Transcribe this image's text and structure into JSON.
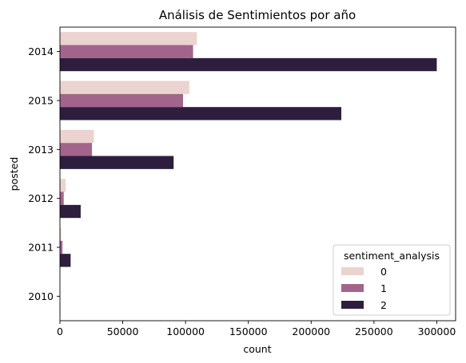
{
  "chart_data": {
    "type": "bar",
    "orientation": "horizontal",
    "title": "Análisis de Sentimientos por año",
    "xlabel": "count",
    "ylabel": "posted",
    "categories": [
      "2014",
      "2015",
      "2013",
      "2012",
      "2011",
      "2010"
    ],
    "series": [
      {
        "name": "0",
        "color": "#ebd3cf",
        "values": [
          109000,
          103000,
          27000,
          4500,
          1000,
          50
        ]
      },
      {
        "name": "1",
        "color": "#a3648c",
        "values": [
          106000,
          98000,
          25500,
          3000,
          2000,
          50
        ]
      },
      {
        "name": "2",
        "color": "#2d1e3e",
        "values": [
          300000,
          224000,
          90500,
          16500,
          8500,
          200
        ]
      }
    ],
    "xlim": [
      0,
      315000
    ],
    "xticks": [
      0,
      50000,
      100000,
      150000,
      200000,
      250000,
      300000
    ],
    "grid": false,
    "legend": {
      "title": "sentiment_analysis",
      "position": "lower-right"
    }
  }
}
